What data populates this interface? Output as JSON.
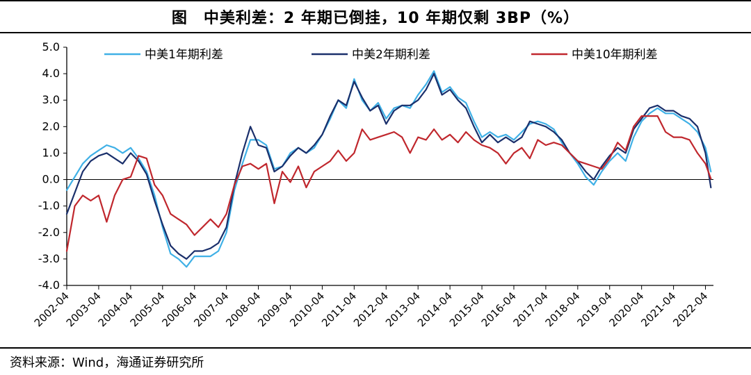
{
  "chart_data": {
    "type": "line",
    "title": "图　中美利差：2 年期已倒挂，10 年期仅剩 3BP（%）",
    "source": "资料来源：Wind，海通证券研究所",
    "xlabel": "",
    "ylabel": "",
    "ylim": [
      -4.0,
      5.0
    ],
    "yticks": [
      "5.0",
      "4.0",
      "3.0",
      "2.0",
      "1.0",
      "0.0",
      "-1.0",
      "-2.0",
      "-3.0",
      "-4.0"
    ],
    "xlim": [
      2002.25,
      2022.5
    ],
    "xticks": [
      "2002-04",
      "2003-04",
      "2004-04",
      "2005-04",
      "2006-04",
      "2007-04",
      "2008-04",
      "2009-04",
      "2010-04",
      "2011-04",
      "2012-04",
      "2013-04",
      "2014-04",
      "2015-04",
      "2016-04",
      "2017-04",
      "2018-04",
      "2019-04",
      "2020-04",
      "2021-04",
      "2022-04"
    ],
    "legend_position": "top",
    "grid": false,
    "series": [
      {
        "name": "中美1年期利差",
        "color": "#3fb0e6",
        "x": [
          2002.25,
          2002.5,
          2002.75,
          2003.0,
          2003.25,
          2003.5,
          2003.75,
          2004.0,
          2004.25,
          2004.5,
          2004.75,
          2005.0,
          2005.25,
          2005.5,
          2005.75,
          2006.0,
          2006.25,
          2006.5,
          2006.75,
          2007.0,
          2007.25,
          2007.5,
          2007.75,
          2008.0,
          2008.25,
          2008.5,
          2008.75,
          2009.0,
          2009.25,
          2009.5,
          2009.75,
          2010.0,
          2010.25,
          2010.5,
          2010.75,
          2011.0,
          2011.25,
          2011.5,
          2011.75,
          2012.0,
          2012.25,
          2012.5,
          2012.75,
          2013.0,
          2013.25,
          2013.5,
          2013.75,
          2014.0,
          2014.25,
          2014.5,
          2014.75,
          2015.0,
          2015.25,
          2015.5,
          2015.75,
          2016.0,
          2016.25,
          2016.5,
          2016.75,
          2017.0,
          2017.25,
          2017.5,
          2017.75,
          2018.0,
          2018.25,
          2018.5,
          2018.75,
          2019.0,
          2019.25,
          2019.5,
          2019.75,
          2020.0,
          2020.25,
          2020.5,
          2020.75,
          2021.0,
          2021.25,
          2021.5,
          2021.75,
          2022.0,
          2022.25,
          2022.42
        ],
        "values": [
          -0.4,
          0.1,
          0.6,
          0.9,
          1.1,
          1.3,
          1.2,
          1.0,
          1.2,
          0.8,
          0.3,
          -0.6,
          -1.8,
          -2.8,
          -3.0,
          -3.3,
          -2.9,
          -2.9,
          -2.9,
          -2.7,
          -2.0,
          -0.4,
          0.6,
          1.5,
          1.5,
          1.3,
          0.4,
          0.5,
          1.0,
          1.2,
          1.0,
          1.2,
          1.7,
          2.3,
          3.0,
          2.7,
          3.8,
          3.0,
          2.6,
          2.9,
          2.3,
          2.7,
          2.8,
          2.7,
          3.2,
          3.6,
          4.1,
          3.3,
          3.5,
          3.1,
          2.9,
          2.2,
          1.6,
          1.8,
          1.6,
          1.7,
          1.5,
          1.8,
          2.1,
          2.2,
          2.1,
          1.9,
          1.4,
          1.0,
          0.6,
          0.1,
          -0.2,
          0.3,
          0.7,
          1.0,
          0.7,
          1.6,
          2.2,
          2.5,
          2.7,
          2.5,
          2.5,
          2.3,
          2.1,
          1.8,
          1.2,
          0.3
        ]
      },
      {
        "name": "中美2年期利差",
        "color": "#1a2f6b",
        "x": [
          2002.25,
          2002.5,
          2002.75,
          2003.0,
          2003.25,
          2003.5,
          2003.75,
          2004.0,
          2004.25,
          2004.5,
          2004.75,
          2005.0,
          2005.25,
          2005.5,
          2005.75,
          2006.0,
          2006.25,
          2006.5,
          2006.75,
          2007.0,
          2007.25,
          2007.5,
          2007.75,
          2008.0,
          2008.25,
          2008.5,
          2008.75,
          2009.0,
          2009.25,
          2009.5,
          2009.75,
          2010.0,
          2010.25,
          2010.5,
          2010.75,
          2011.0,
          2011.25,
          2011.5,
          2011.75,
          2012.0,
          2012.25,
          2012.5,
          2012.75,
          2013.0,
          2013.25,
          2013.5,
          2013.75,
          2014.0,
          2014.25,
          2014.5,
          2014.75,
          2015.0,
          2015.25,
          2015.5,
          2015.75,
          2016.0,
          2016.25,
          2016.5,
          2016.75,
          2017.0,
          2017.25,
          2017.5,
          2017.75,
          2018.0,
          2018.25,
          2018.5,
          2018.75,
          2019.0,
          2019.25,
          2019.5,
          2019.75,
          2020.0,
          2020.25,
          2020.5,
          2020.75,
          2021.0,
          2021.25,
          2021.5,
          2021.75,
          2022.0,
          2022.25,
          2022.42
        ],
        "values": [
          -1.3,
          -0.5,
          0.3,
          0.7,
          0.9,
          1.0,
          0.8,
          0.6,
          1.0,
          0.7,
          0.2,
          -0.8,
          -1.7,
          -2.5,
          -2.8,
          -3.0,
          -2.7,
          -2.7,
          -2.6,
          -2.4,
          -1.8,
          -0.2,
          1.0,
          2.0,
          1.3,
          1.2,
          0.3,
          0.5,
          0.9,
          1.2,
          1.0,
          1.3,
          1.7,
          2.4,
          3.0,
          2.8,
          3.7,
          3.1,
          2.6,
          2.8,
          2.1,
          2.6,
          2.8,
          2.8,
          3.0,
          3.4,
          4.0,
          3.2,
          3.4,
          3.0,
          2.7,
          2.0,
          1.4,
          1.7,
          1.4,
          1.6,
          1.4,
          1.6,
          2.2,
          2.1,
          2.0,
          1.8,
          1.5,
          1.0,
          0.7,
          0.3,
          0.0,
          0.5,
          0.9,
          1.2,
          1.0,
          1.9,
          2.3,
          2.7,
          2.8,
          2.6,
          2.6,
          2.4,
          2.3,
          2.0,
          1.0,
          -0.3
        ]
      },
      {
        "name": "中美10年期利差",
        "color": "#c0272d",
        "x": [
          2002.25,
          2002.5,
          2002.75,
          2003.0,
          2003.25,
          2003.5,
          2003.75,
          2004.0,
          2004.25,
          2004.5,
          2004.75,
          2005.0,
          2005.25,
          2005.5,
          2005.75,
          2006.0,
          2006.25,
          2006.5,
          2006.75,
          2007.0,
          2007.25,
          2007.5,
          2007.75,
          2008.0,
          2008.25,
          2008.5,
          2008.75,
          2009.0,
          2009.25,
          2009.5,
          2009.75,
          2010.0,
          2010.25,
          2010.5,
          2010.75,
          2011.0,
          2011.25,
          2011.5,
          2011.75,
          2012.0,
          2012.25,
          2012.5,
          2012.75,
          2013.0,
          2013.25,
          2013.5,
          2013.75,
          2014.0,
          2014.25,
          2014.5,
          2014.75,
          2015.0,
          2015.25,
          2015.5,
          2015.75,
          2016.0,
          2016.25,
          2016.5,
          2016.75,
          2017.0,
          2017.25,
          2017.5,
          2017.75,
          2018.0,
          2018.25,
          2018.5,
          2018.75,
          2019.0,
          2019.25,
          2019.5,
          2019.75,
          2020.0,
          2020.25,
          2020.5,
          2020.75,
          2021.0,
          2021.25,
          2021.5,
          2021.75,
          2022.0,
          2022.25,
          2022.42
        ],
        "values": [
          -2.7,
          -1.0,
          -0.6,
          -0.8,
          -0.6,
          -1.6,
          -0.6,
          0.0,
          0.1,
          0.9,
          0.8,
          -0.2,
          -0.6,
          -1.3,
          -1.5,
          -1.7,
          -2.1,
          -1.8,
          -1.5,
          -1.8,
          -1.3,
          -0.2,
          0.5,
          0.6,
          0.4,
          0.6,
          -0.9,
          0.3,
          -0.1,
          0.5,
          -0.3,
          0.3,
          0.5,
          0.7,
          1.1,
          0.7,
          1.0,
          1.9,
          1.5,
          1.6,
          1.7,
          1.8,
          1.6,
          1.0,
          1.6,
          1.5,
          1.9,
          1.5,
          1.7,
          1.4,
          1.8,
          1.5,
          1.3,
          1.2,
          1.0,
          0.6,
          1.0,
          1.2,
          0.8,
          1.5,
          1.3,
          1.4,
          1.3,
          1.0,
          0.7,
          0.6,
          0.5,
          0.4,
          0.8,
          1.4,
          1.1,
          2.0,
          2.4,
          2.4,
          2.4,
          1.8,
          1.6,
          1.6,
          1.5,
          1.0,
          0.6,
          0.03
        ]
      }
    ]
  }
}
